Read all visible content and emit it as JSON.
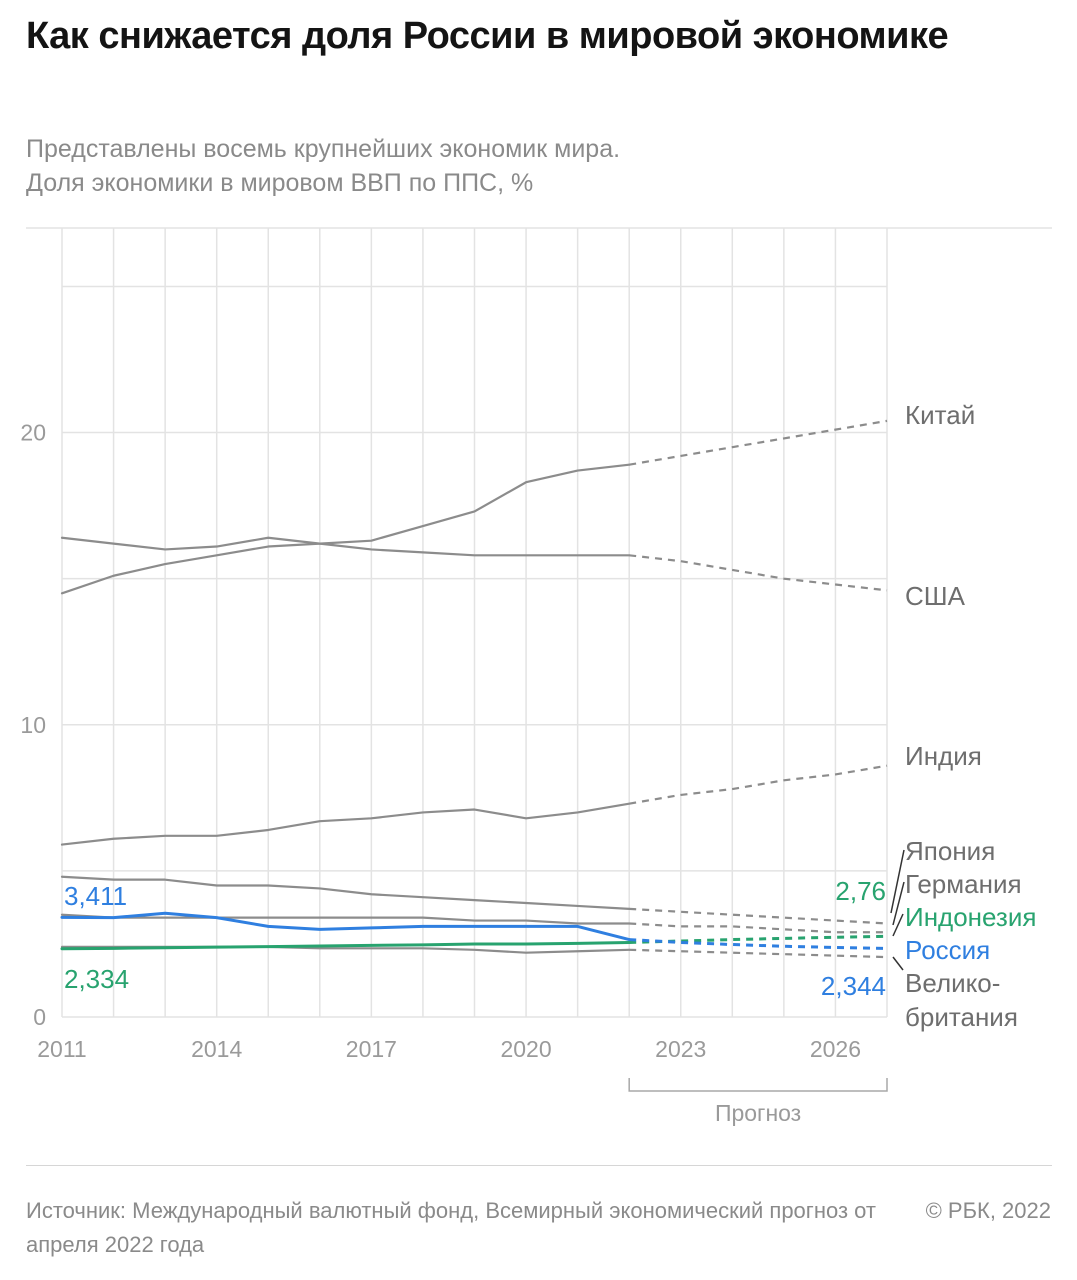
{
  "title": "Как снижается доля России в мировой экономике",
  "subtitle": {
    "line1": "Представлены восемь крупнейших экономик мира.",
    "line2": "Доля экономики в мировом ВВП по ППС, %"
  },
  "footer": {
    "source": "Источник: Международный валютный фонд, Всемирный экономический прогноз от апреля 2022 года",
    "copyright": "© РБК, 2022"
  },
  "colors": {
    "gray_line": "#8c8c8c",
    "russia": "#2f7fe0",
    "indonesia": "#28a36f",
    "grid": "#e3e3e3",
    "axis_text": "#9a9a9a",
    "label_gray": "#6e6e6e"
  },
  "chart_data": {
    "type": "line",
    "title": "Как снижается доля России в мировой экономике",
    "ylabel": "Доля экономики в мировом ВВП по ППС, %",
    "xlim": [
      2011,
      2027
    ],
    "ylim": [
      0,
      27
    ],
    "y_ticks": [
      0,
      10,
      20
    ],
    "x_ticks": [
      2011,
      2014,
      2017,
      2020,
      2023,
      2026
    ],
    "forecast_start": 2022,
    "forecast_label": "Прогноз",
    "forecast_bracket": [
      2022,
      2027
    ],
    "x": [
      2011,
      2012,
      2013,
      2014,
      2015,
      2016,
      2017,
      2018,
      2019,
      2020,
      2021,
      2022,
      2023,
      2024,
      2025,
      2026,
      2027
    ],
    "series": [
      {
        "name": "Китай",
        "color": "gray",
        "values": [
          14.5,
          15.1,
          15.5,
          15.8,
          16.1,
          16.2,
          16.3,
          16.8,
          17.3,
          18.3,
          18.7,
          18.9,
          19.2,
          19.5,
          19.8,
          20.1,
          20.4
        ]
      },
      {
        "name": "США",
        "color": "gray",
        "values": [
          16.4,
          16.2,
          16.0,
          16.1,
          16.4,
          16.2,
          16.0,
          15.9,
          15.8,
          15.8,
          15.8,
          15.8,
          15.6,
          15.3,
          15.0,
          14.8,
          14.6
        ]
      },
      {
        "name": "Индия",
        "color": "gray",
        "values": [
          5.9,
          6.1,
          6.2,
          6.2,
          6.4,
          6.7,
          6.8,
          7.0,
          7.1,
          6.8,
          7.0,
          7.3,
          7.6,
          7.8,
          8.1,
          8.3,
          8.6
        ]
      },
      {
        "name": "Япония",
        "color": "gray",
        "values": [
          4.8,
          4.7,
          4.7,
          4.5,
          4.5,
          4.4,
          4.2,
          4.1,
          4.0,
          3.9,
          3.8,
          3.7,
          3.6,
          3.5,
          3.4,
          3.3,
          3.2
        ]
      },
      {
        "name": "Германия",
        "color": "gray",
        "values": [
          3.5,
          3.4,
          3.4,
          3.4,
          3.4,
          3.4,
          3.4,
          3.4,
          3.3,
          3.3,
          3.2,
          3.2,
          3.1,
          3.1,
          3.0,
          2.9,
          2.9
        ]
      },
      {
        "name": "Индонезия",
        "color": "indonesia",
        "values": [
          2.334,
          2.35,
          2.37,
          2.39,
          2.41,
          2.43,
          2.45,
          2.47,
          2.5,
          2.5,
          2.52,
          2.55,
          2.6,
          2.65,
          2.69,
          2.73,
          2.76
        ]
      },
      {
        "name": "Россия",
        "color": "russia",
        "values": [
          3.411,
          3.4,
          3.55,
          3.4,
          3.1,
          3.0,
          3.05,
          3.1,
          3.1,
          3.1,
          3.1,
          2.65,
          2.55,
          2.48,
          2.42,
          2.38,
          2.344
        ]
      },
      {
        "name": "Великобритания",
        "color": "gray",
        "values": [
          2.4,
          2.4,
          2.4,
          2.4,
          2.4,
          2.35,
          2.35,
          2.35,
          2.3,
          2.2,
          2.25,
          2.3,
          2.25,
          2.2,
          2.15,
          2.1,
          2.05
        ]
      }
    ],
    "series_labels": {
      "china": "Китай",
      "usa": "США",
      "india": "Индия",
      "japan": "Япония",
      "germany": "Германия",
      "indonesia": "Индонезия",
      "russia": "Россия",
      "uk_line1": "Велико-",
      "uk_line2": "британия"
    },
    "annotations": {
      "russia_start": "3,411",
      "indonesia_start": "2,334",
      "indonesia_end": "2,76",
      "russia_end": "2,344"
    }
  }
}
